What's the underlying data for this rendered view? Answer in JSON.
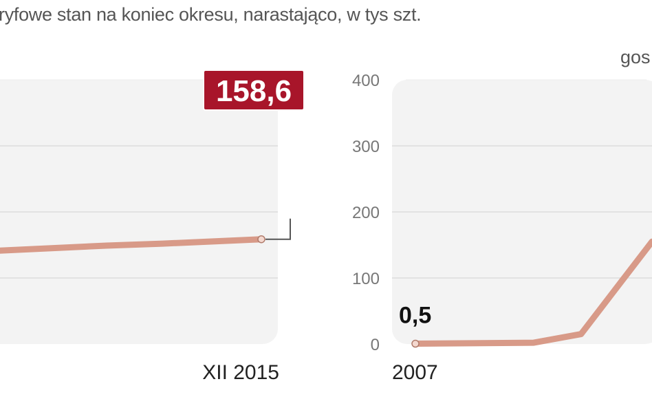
{
  "header": {
    "subtitle": "ryfowe stan na koniec okresu, narastająco,  w tys szt.",
    "right_label": "gos"
  },
  "colors": {
    "line": "#d89a88",
    "panel": "#f3f3f3",
    "grid": "#dcdcdc",
    "callout_bg": "#a8152a"
  },
  "chart_data": [
    {
      "type": "line",
      "title": "",
      "xlabel": "",
      "ylabel": "",
      "x_end_label": "XII 2015",
      "ylim": [
        0,
        400
      ],
      "grid": true,
      "series": [
        {
          "values": [
            {
              "x": 0.0,
              "y": 140
            },
            {
              "x": 0.45,
              "y": 149
            },
            {
              "x": 0.65,
              "y": 152
            },
            {
              "x": 1.0,
              "y": 158.6
            }
          ]
        }
      ],
      "annotations": [
        {
          "label": "158,6",
          "style": "callout"
        }
      ]
    },
    {
      "type": "line",
      "title": "",
      "xlabel": "",
      "ylabel": "",
      "x_start_label": "2007",
      "ylim": [
        0,
        400
      ],
      "yticks": [
        "0",
        "100",
        "200",
        "300",
        "400"
      ],
      "grid": true,
      "series": [
        {
          "values": [
            {
              "x": 0.0,
              "y": 0.5
            },
            {
              "x": 0.5,
              "y": 2
            },
            {
              "x": 0.7,
              "y": 15
            },
            {
              "x": 1.0,
              "y": 155
            }
          ]
        }
      ],
      "annotations": [
        {
          "label": "0,5",
          "style": "plain"
        }
      ]
    }
  ]
}
